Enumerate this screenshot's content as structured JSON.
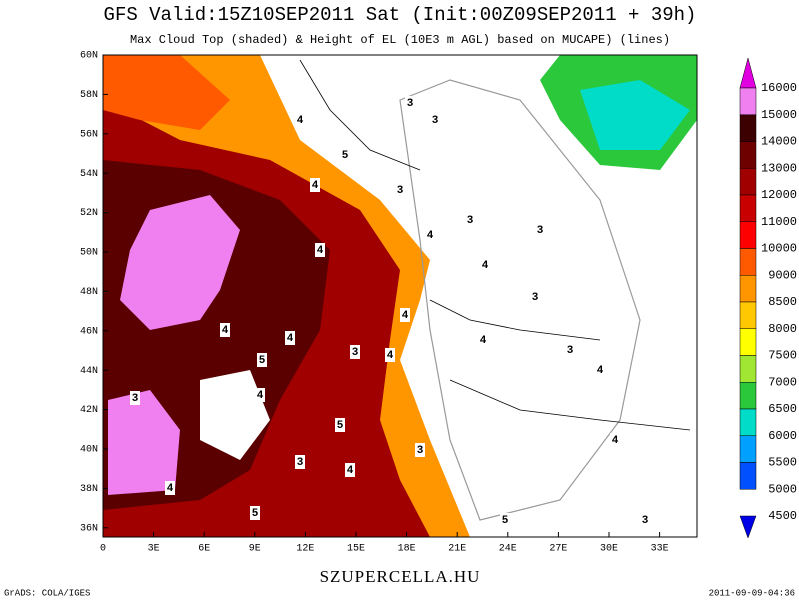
{
  "title": "GFS Valid:15Z10SEP2011 Sat (Init:00Z09SEP2011 + 39h)",
  "subtitle": "Max Cloud Top (shaded) & Height of EL (10E3 m AGL) based on MUCAPE) (lines)",
  "lat_labels": [
    "60N",
    "58N",
    "56N",
    "54N",
    "52N",
    "50N",
    "48N",
    "46N",
    "44N",
    "42N",
    "40N",
    "38N",
    "36N"
  ],
  "lon_labels": [
    "0",
    "3E",
    "6E",
    "9E",
    "12E",
    "15E",
    "18E",
    "21E",
    "24E",
    "27E",
    "30E",
    "33E"
  ],
  "colorbar": {
    "labels": [
      "16000",
      "15000",
      "14000",
      "13000",
      "12000",
      "11000",
      "10000",
      "9000",
      "8500",
      "8000",
      "7500",
      "7000",
      "6500",
      "6000",
      "5500",
      "5000",
      "4500"
    ],
    "colors": [
      "#e000e0",
      "#f080f0",
      "#3c0000",
      "#6e0000",
      "#a00000",
      "#c80000",
      "#ff0000",
      "#ff5a00",
      "#ff9600",
      "#ffc800",
      "#ffff00",
      "#a0e632",
      "#2cc83c",
      "#00dcc8",
      "#00a0ff",
      "#0050ff",
      "#0000e6"
    ]
  },
  "contour_labels": [
    "3",
    "3",
    "4",
    "5",
    "3",
    "4",
    "4",
    "3",
    "3",
    "4",
    "3",
    "4",
    "4",
    "5",
    "4",
    "3",
    "4",
    "4",
    "4",
    "3",
    "5",
    "4",
    "3",
    "4",
    "4",
    "3",
    "5",
    "4",
    "3",
    "5",
    "4",
    "3"
  ],
  "footer": {
    "left": "GrADS: COLA/IGES",
    "center": "SZUPERCELLA.HU",
    "right": "2011-09-09-04:36"
  }
}
